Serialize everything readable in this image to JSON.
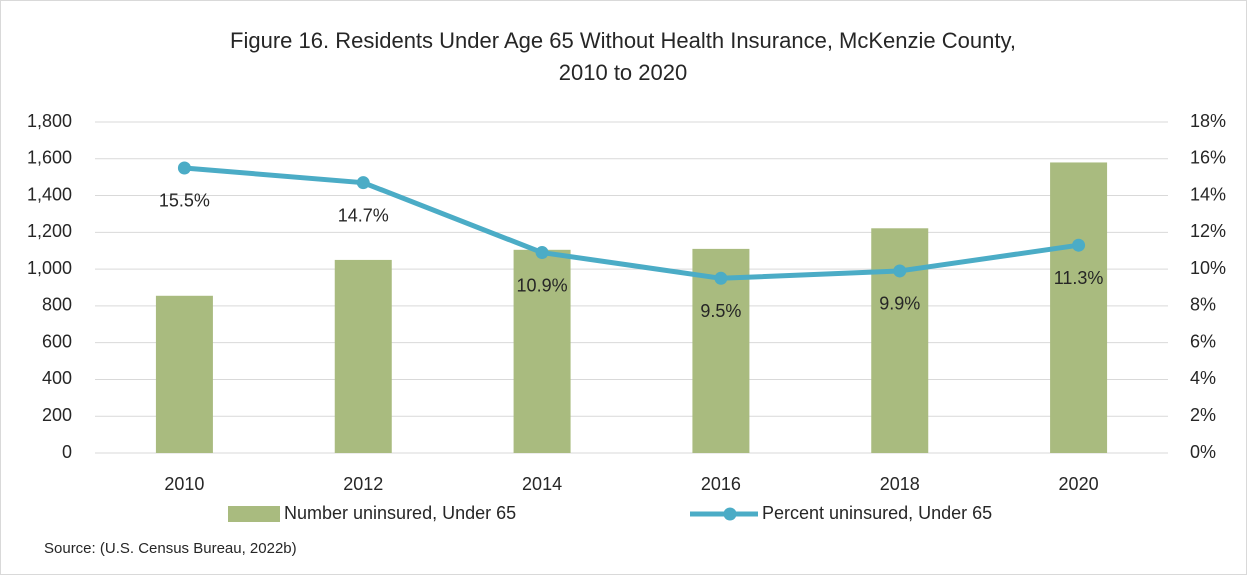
{
  "chart_data": {
    "type": "bar",
    "title": [
      "Figure 16. Residents Under Age 65 Without Health Insurance, McKenzie County,",
      "2010 to 2020"
    ],
    "categories": [
      "2010",
      "2012",
      "2014",
      "2016",
      "2018",
      "2020"
    ],
    "series": [
      {
        "name": "Number uninsured, Under 65",
        "type": "bar",
        "color": "#a9bb7f",
        "values": [
          855,
          1050,
          1105,
          1110,
          1222,
          1580
        ]
      },
      {
        "name": "Percent uninsured, Under 65",
        "type": "line",
        "axis": "y2",
        "color": "#4bacc6",
        "values": [
          15.5,
          14.7,
          10.9,
          9.5,
          9.9,
          11.3
        ],
        "value_labels": [
          "15.5%",
          "14.7%",
          "10.9%",
          "9.5%",
          "9.9%",
          "11.3%"
        ]
      }
    ],
    "ylim": [
      0,
      1800
    ],
    "yticks": [
      0,
      200,
      400,
      600,
      800,
      {
        "value": 1000,
        "label": "1,000"
      },
      {
        "value": 1200,
        "label": "1,200"
      },
      {
        "value": 1400,
        "label": "1,400"
      },
      {
        "value": 1600,
        "label": "1,600"
      },
      {
        "value": 1800,
        "label": "1,800"
      }
    ],
    "y2lim": [
      0,
      18
    ],
    "y2ticks": [
      {
        "value": 0,
        "label": "0%"
      },
      {
        "value": 2,
        "label": "2%"
      },
      {
        "value": 4,
        "label": "4%"
      },
      {
        "value": 6,
        "label": "6%"
      },
      {
        "value": 8,
        "label": "8%"
      },
      {
        "value": 10,
        "label": "10%"
      },
      {
        "value": 12,
        "label": "12%"
      },
      {
        "value": 14,
        "label": "14%"
      },
      {
        "value": 16,
        "label": "16%"
      },
      {
        "value": 18,
        "label": "18%"
      }
    ],
    "grid": true,
    "legend": "bottom",
    "source": "Source: (U.S. Census Bureau, 2022b)"
  }
}
